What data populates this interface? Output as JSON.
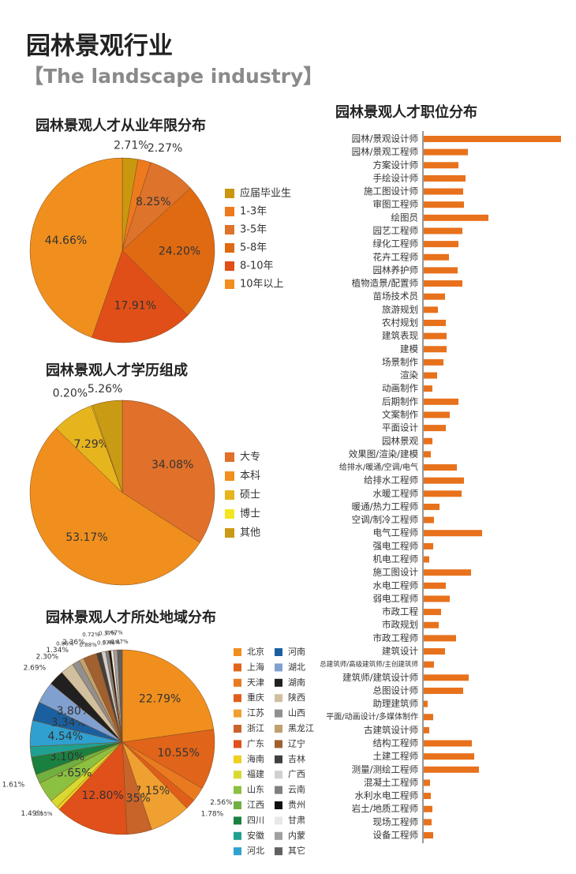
{
  "header": {
    "title": "园林景观行业",
    "subtitle": "【The landscape industry】"
  },
  "chart_data": [
    {
      "type": "pie",
      "title": "园林景观人才从业年限分布",
      "categories": [
        "应届毕业生",
        "1-3年",
        "3-5年",
        "5-8年",
        "8-10年",
        "10年以上"
      ],
      "values": [
        2.71,
        2.27,
        8.25,
        24.2,
        17.91,
        44.66
      ],
      "value_labels": [
        "2.71%",
        "2.27%",
        "8.25%",
        "24.20%",
        "17.91%",
        "44.66%"
      ],
      "colors": [
        "#c9980f",
        "#ee7a1e",
        "#de732c",
        "#df6a12",
        "#e04f18",
        "#f08f1e"
      ]
    },
    {
      "type": "pie",
      "title": "园林景观人才学历组成",
      "categories": [
        "大专",
        "本科",
        "硕士",
        "博士",
        "其他"
      ],
      "values": [
        34.08,
        53.17,
        7.29,
        0.2,
        5.26
      ],
      "value_labels": [
        "34.08%",
        "53.17%",
        "7.29%",
        "0.20%",
        "5.26%"
      ],
      "colors": [
        "#e0702a",
        "#f08f1e",
        "#e6b51e",
        "#f3e51f",
        "#c99a14"
      ]
    },
    {
      "type": "pie",
      "title": "园林景观人才所处地域分布",
      "categories": [
        "北京",
        "上海",
        "天津",
        "重庆",
        "江苏",
        "浙江",
        "广东",
        "海南",
        "福建",
        "山东",
        "江西",
        "四川",
        "安徽",
        "河北",
        "河南",
        "湖北",
        "湖南",
        "陕西",
        "山西",
        "黑龙江",
        "辽宁",
        "吉林",
        "广西",
        "云南",
        "贵州",
        "甘肃",
        "内蒙",
        "其它"
      ],
      "values": [
        22.79,
        10.55,
        2.56,
        1.78,
        7.15,
        4.35,
        12.8,
        0.55,
        1.49,
        3.65,
        1.61,
        3.1,
        1.87,
        4.54,
        3.34,
        3.8,
        2.69,
        2.3,
        1.34,
        0.86,
        2.36,
        0.88,
        0.72,
        0.57,
        0.37,
        0.44,
        0.67,
        0.87
      ],
      "value_labels": [
        "22.79%",
        "10.55%",
        "2.56%",
        "1.78%",
        "7.15%",
        "4.35%",
        "12.80%",
        "0.55%",
        "1.49%",
        "3.65%",
        "1.61%",
        "3.10%",
        null,
        "4.54%",
        "3.34%",
        "3.80%",
        "2.69%",
        "2.30%",
        "1.34%",
        "0.86%",
        "2.36%",
        "0.88%",
        "0.72%",
        "0.57%",
        "0.37%",
        "0.44%",
        "0.67%",
        "0.87%"
      ],
      "colors": [
        "#f08f1e",
        "#e0641a",
        "#ea7a20",
        "#e05e1a",
        "#f0a030",
        "#c8642a",
        "#e0501a",
        "#f0d020",
        "#d8d830",
        "#8cc040",
        "#70b040",
        "#1a8040",
        "#20a090",
        "#30a0d0",
        "#1a60a0",
        "#80a0d0",
        "#202020",
        "#d0c0a0",
        "#909090",
        "#c0a070",
        "#a06030",
        "#404040",
        "#d0d0d0",
        "#808080",
        "#101010",
        "#e8e8e8",
        "#a0a0a0",
        "#606060"
      ]
    },
    {
      "type": "bar",
      "orientation": "horizontal",
      "title": "园林景观人才职位分布",
      "color": "#e8711c",
      "categories": [
        "园林/景观设计师",
        "园林/景观工程师",
        "方案设计师",
        "手绘设计师",
        "施工图设计师",
        "审图工程师",
        "绘图员",
        "园艺工程师",
        "绿化工程师",
        "花卉工程师",
        "园林养护师",
        "植物造景/配置师",
        "苗场技术员",
        "旅游规划",
        "农村规划",
        "建筑表现",
        "建模",
        "场景制作",
        "渲染",
        "动画制作",
        "后期制作",
        "文案制作",
        "平面设计",
        "园林景观",
        "效果图/渲染/建模",
        "给排水/暖通/空调/电气",
        "给排水工程师",
        "水暖工程师",
        "暖通/热力工程师",
        "空调/制冷工程师",
        "电气工程师",
        "强电工程师",
        "机电工程师",
        "施工图设计",
        "水电工程师",
        "弱电工程师",
        "市政工程",
        "市政规划",
        "市政工程师",
        "建筑设计",
        "总建筑师/高级建筑师/主创建筑师",
        "建筑师/建筑设计师",
        "总图设计师",
        "助理建筑师",
        "平面/动画设计/多媒体制作",
        "古建筑设计师",
        "结构工程师",
        "土建工程师",
        "测量/测绘工程师",
        "混凝土工程师",
        "水利水电工程师",
        "岩土/地质工程师",
        "现场工程师",
        "设备工程师"
      ],
      "values": [
        174,
        56,
        44,
        53,
        50,
        51,
        82,
        49,
        44,
        32,
        43,
        49,
        27,
        18,
        28,
        29,
        29,
        25,
        17,
        11,
        44,
        33,
        28,
        11,
        9,
        42,
        51,
        48,
        20,
        13,
        74,
        12,
        7,
        60,
        28,
        33,
        22,
        19,
        41,
        27,
        13,
        57,
        50,
        5,
        12,
        7,
        61,
        64,
        70,
        8,
        9,
        11,
        10,
        12
      ]
    }
  ]
}
